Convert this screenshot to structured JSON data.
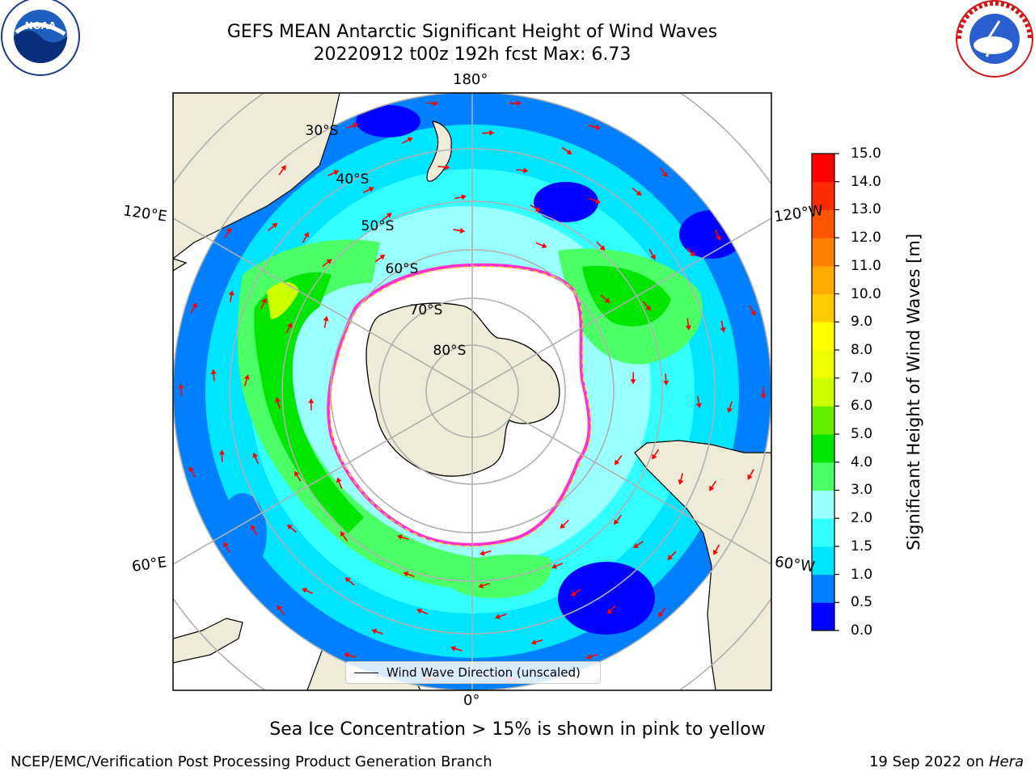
{
  "title": {
    "line1": "GEFS MEAN Antarctic Significant Height of Wind Waves",
    "line2": "20220912 t00z 192h fcst   Max: 6.73"
  },
  "logos": {
    "left": {
      "name": "NOAA",
      "ring_text": "NATIONAL OCEANIC AND ATMOSPHERIC ADMINISTRATION · U.S. DEPARTMENT OF COMMERCE"
    },
    "right": {
      "name": "NATIONAL WEATHER SERVICE"
    }
  },
  "map": {
    "projection": "South Polar Stereographic",
    "longitude_labels": [
      "180°",
      "120°E",
      "120°W",
      "60°E",
      "60°W",
      "0°"
    ],
    "latitude_labels": [
      "30°S",
      "40°S",
      "50°S",
      "60°S",
      "70°S",
      "80°S"
    ],
    "legend": "Wind Wave Direction (unscaled)",
    "colors": {
      "land": "#efebd9",
      "ice": "#ffffff",
      "ice_edge": "#ff33cc",
      "ice_edge_inner": "#ffcc33",
      "grid": "#b0b0b0",
      "arrow": "#ff0000"
    }
  },
  "colorbar": {
    "label": "Significant Height of Wind Waves [m]",
    "ticks": [
      "0.0",
      "0.5",
      "1.0",
      "1.5",
      "2.0",
      "3.0",
      "4.0",
      "5.0",
      "6.0",
      "7.0",
      "8.0",
      "9.0",
      "10.0",
      "11.0",
      "12.0",
      "13.0",
      "14.0",
      "15.0"
    ],
    "colors": [
      "#0000ff",
      "#0080ff",
      "#00e5ff",
      "#33ffff",
      "#99ffff",
      "#4cff66",
      "#00e600",
      "#66ee00",
      "#ccff00",
      "#eeff00",
      "#ffff00",
      "#ffcc00",
      "#ffaa00",
      "#ff8000",
      "#ff5500",
      "#ff2a00",
      "#ff0000"
    ]
  },
  "caption": "Sea Ice Concentration > 15% is shown in pink to yellow",
  "footer": {
    "left": "NCEP/EMC/Verification Post Processing Product Generation Branch",
    "date": "19 Sep 2022 on",
    "machine": "Hera"
  }
}
